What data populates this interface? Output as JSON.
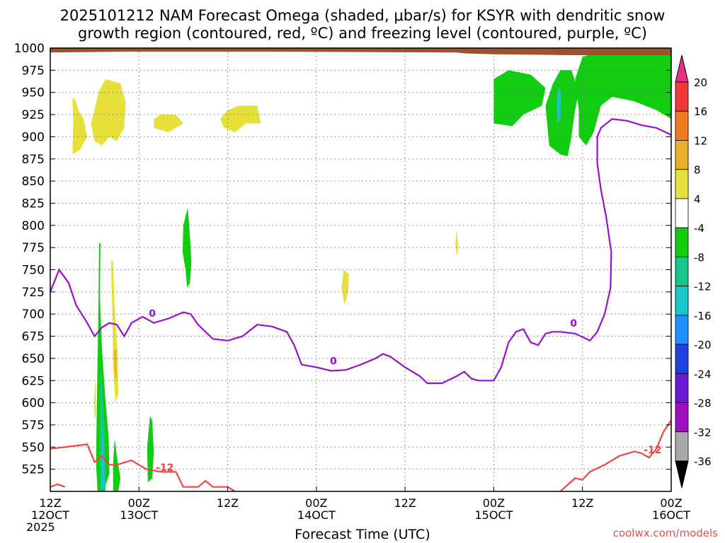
{
  "chart_data": {
    "type": "heatmap",
    "title_line1": "2025101212 NAM Forecast Omega (shaded, μbar/s) for KSYR with dendritic snow",
    "title_line2": "growth region (contoured, red, ºC) and freezing level (contoured, purple, ºC)",
    "xlabel": "Forecast Time (UTC)",
    "credit": "coolwx.com/models",
    "x_hours_range": [
      0,
      84
    ],
    "y_pressure_range": [
      1000,
      500
    ],
    "y_ticks": [
      525,
      550,
      575,
      600,
      625,
      650,
      675,
      700,
      725,
      750,
      775,
      800,
      825,
      850,
      875,
      900,
      925,
      950,
      975,
      1000
    ],
    "x_ticks": [
      {
        "h": 0,
        "top": "12Z",
        "bottom": "12OCT",
        "year": "2025"
      },
      {
        "h": 12,
        "top": "00Z",
        "bottom": "13OCT",
        "year": ""
      },
      {
        "h": 24,
        "top": "12Z",
        "bottom": "",
        "year": ""
      },
      {
        "h": 36,
        "top": "00Z",
        "bottom": "14OCT",
        "year": ""
      },
      {
        "h": 48,
        "top": "12Z",
        "bottom": "",
        "year": ""
      },
      {
        "h": 60,
        "top": "00Z",
        "bottom": "15OCT",
        "year": ""
      },
      {
        "h": 72,
        "top": "12Z",
        "bottom": "",
        "year": ""
      },
      {
        "h": 84,
        "top": "00Z",
        "bottom": "16OCT",
        "year": ""
      }
    ],
    "colorbar": {
      "labels": [
        "20",
        "16",
        "12",
        "8",
        "4",
        "-4",
        "-8",
        "-12",
        "-16",
        "-20",
        "-24",
        "-28",
        "-32",
        "-36"
      ],
      "bands": [
        {
          "color": "#e8308a"
        },
        {
          "color": "#ee3a3a"
        },
        {
          "color": "#f07b23"
        },
        {
          "color": "#e8b02a"
        },
        {
          "color": "#e8e03a"
        },
        {
          "color": "#ffffff"
        },
        {
          "color": "#11cc11"
        },
        {
          "color": "#15c88a"
        },
        {
          "color": "#18c8c8"
        },
        {
          "color": "#1e90ff"
        },
        {
          "color": "#2040e0"
        },
        {
          "color": "#6a1ad0"
        },
        {
          "color": "#a010c0"
        },
        {
          "color": "#a9a9a9"
        },
        {
          "color": "#000000"
        }
      ]
    },
    "contour_labels": {
      "dgz": "-12",
      "freezing": "0"
    },
    "freezing_level": [
      [
        0,
        725
      ],
      [
        1.2,
        750
      ],
      [
        2.5,
        735
      ],
      [
        3.5,
        710
      ],
      [
        5,
        690
      ],
      [
        6,
        675
      ],
      [
        7,
        685
      ],
      [
        8,
        690
      ],
      [
        9,
        688
      ],
      [
        10,
        675
      ],
      [
        11,
        690
      ],
      [
        12.5,
        697
      ],
      [
        14,
        690
      ],
      [
        16,
        695
      ],
      [
        18,
        702
      ],
      [
        19,
        700
      ],
      [
        20,
        688
      ],
      [
        22,
        672
      ],
      [
        24,
        670
      ],
      [
        26,
        675
      ],
      [
        28,
        688
      ],
      [
        30,
        686
      ],
      [
        32,
        680
      ],
      [
        33,
        665
      ],
      [
        34,
        643
      ],
      [
        36,
        640
      ],
      [
        38,
        636
      ],
      [
        40,
        637
      ],
      [
        42,
        643
      ],
      [
        44,
        650
      ],
      [
        45,
        655
      ],
      [
        46,
        652
      ],
      [
        48,
        640
      ],
      [
        50,
        630
      ],
      [
        51,
        622
      ],
      [
        53,
        622
      ],
      [
        55,
        630
      ],
      [
        56,
        635
      ],
      [
        57,
        627
      ],
      [
        58,
        625
      ],
      [
        60,
        625
      ],
      [
        61,
        640
      ],
      [
        62,
        668
      ],
      [
        63,
        680
      ],
      [
        64,
        683
      ],
      [
        65,
        668
      ],
      [
        66,
        665
      ],
      [
        67,
        678
      ],
      [
        68,
        680
      ],
      [
        69,
        680
      ],
      [
        71,
        678
      ],
      [
        73,
        670
      ],
      [
        74,
        680
      ],
      [
        75,
        700
      ],
      [
        75.8,
        730
      ],
      [
        75.9,
        770
      ],
      [
        75.2,
        810
      ],
      [
        74.5,
        840
      ],
      [
        74,
        870
      ],
      [
        74,
        900
      ],
      [
        74.5,
        910
      ],
      [
        76,
        920
      ],
      [
        78,
        918
      ],
      [
        80,
        913
      ],
      [
        82,
        910
      ],
      [
        84,
        902
      ]
    ],
    "dgz_top": [
      [
        0,
        548
      ],
      [
        5,
        553
      ],
      [
        6,
        533
      ],
      [
        7,
        540
      ],
      [
        8,
        530
      ],
      [
        9,
        530
      ],
      [
        11,
        535
      ],
      [
        12,
        530
      ],
      [
        13,
        525
      ],
      [
        15,
        522
      ],
      [
        17,
        522
      ],
      [
        18,
        505
      ],
      [
        20,
        505
      ],
      [
        21,
        512
      ],
      [
        22,
        505
      ],
      [
        24,
        505
      ],
      [
        25,
        500
      ]
    ],
    "dgz_left_top": [
      [
        0,
        505
      ],
      [
        1,
        508
      ],
      [
        2,
        505
      ]
    ],
    "dgz_right": [
      [
        69,
        500
      ],
      [
        71,
        515
      ],
      [
        72,
        513
      ],
      [
        73,
        522
      ],
      [
        75,
        530
      ],
      [
        77,
        540
      ],
      [
        79,
        545
      ],
      [
        80,
        543
      ],
      [
        81,
        538
      ],
      [
        82,
        548
      ],
      [
        83,
        568
      ],
      [
        84,
        580
      ]
    ],
    "omega_regions": [
      {
        "color": "#11cc11",
        "pts": [
          [
            6.4,
            500
          ],
          [
            7.2,
            500
          ],
          [
            8.0,
            520
          ],
          [
            7.9,
            560
          ],
          [
            7.4,
            610
          ],
          [
            7.0,
            660
          ],
          [
            6.7,
            720
          ],
          [
            6.8,
            780
          ],
          [
            6.6,
            780
          ],
          [
            6.5,
            700
          ],
          [
            6.3,
            600
          ],
          [
            6.2,
            530
          ]
        ]
      },
      {
        "color": "#11cc11",
        "pts": [
          [
            8.5,
            500
          ],
          [
            9.2,
            500
          ],
          [
            9.5,
            515
          ],
          [
            9.0,
            540
          ],
          [
            8.7,
            560
          ],
          [
            8.5,
            530
          ]
        ]
      },
      {
        "color": "#11cc11",
        "pts": [
          [
            13.2,
            510
          ],
          [
            13.8,
            515
          ],
          [
            14.0,
            545
          ],
          [
            13.8,
            580
          ],
          [
            13.5,
            585
          ],
          [
            13.1,
            550
          ]
        ]
      },
      {
        "color": "#15c88a",
        "pts": [
          [
            6.8,
            500
          ],
          [
            7.5,
            500
          ],
          [
            7.4,
            560
          ],
          [
            7.0,
            620
          ],
          [
            6.8,
            640
          ],
          [
            6.7,
            560
          ]
        ]
      },
      {
        "color": "#18c8c8",
        "pts": [
          [
            7.0,
            505
          ],
          [
            7.4,
            505
          ],
          [
            7.3,
            540
          ],
          [
            7.0,
            570
          ],
          [
            6.9,
            530
          ]
        ]
      },
      {
        "color": "#11cc11",
        "pts": [
          [
            18.5,
            730
          ],
          [
            18.9,
            735
          ],
          [
            19.1,
            760
          ],
          [
            18.8,
            800
          ],
          [
            18.6,
            820
          ],
          [
            18.0,
            800
          ],
          [
            17.9,
            770
          ],
          [
            18.3,
            750
          ]
        ]
      },
      {
        "color": "#e8e03a",
        "pts": [
          [
            8.8,
            600
          ],
          [
            9.2,
            610
          ],
          [
            9.1,
            660
          ],
          [
            8.7,
            710
          ],
          [
            8.5,
            760
          ],
          [
            8.2,
            760
          ],
          [
            8.4,
            700
          ],
          [
            8.5,
            640
          ]
        ]
      },
      {
        "color": "#e8b02a",
        "pts": [
          [
            8.8,
            625
          ],
          [
            9.0,
            630
          ],
          [
            8.9,
            660
          ],
          [
            8.6,
            660
          ],
          [
            8.7,
            640
          ]
        ]
      },
      {
        "color": "#e8e03a",
        "pts": [
          [
            6.0,
            580
          ],
          [
            6.2,
            590
          ],
          [
            6.1,
            630
          ],
          [
            5.9,
            600
          ]
        ]
      },
      {
        "color": "#e8e03a",
        "pts": [
          [
            39.8,
            710
          ],
          [
            40.3,
            725
          ],
          [
            40.4,
            745
          ],
          [
            39.7,
            750
          ],
          [
            39.4,
            730
          ]
        ]
      },
      {
        "color": "#e8e03a",
        "pts": [
          [
            55.0,
            765
          ],
          [
            55.2,
            775
          ],
          [
            55.0,
            795
          ],
          [
            54.8,
            780
          ]
        ]
      },
      {
        "color": "#e8e03a",
        "pts": [
          [
            3.0,
            880
          ],
          [
            4.0,
            885
          ],
          [
            5.0,
            900
          ],
          [
            4.5,
            920
          ],
          [
            3.8,
            930
          ],
          [
            3.5,
            940
          ],
          [
            3.0,
            945
          ],
          [
            3.1,
            915
          ]
        ]
      },
      {
        "color": "#e8e03a",
        "pts": [
          [
            6.0,
            895
          ],
          [
            7.0,
            890
          ],
          [
            8.0,
            900
          ],
          [
            9.0,
            895
          ],
          [
            10.0,
            910
          ],
          [
            10.2,
            940
          ],
          [
            9.5,
            960
          ],
          [
            7.5,
            965
          ],
          [
            6.5,
            950
          ],
          [
            6.0,
            930
          ],
          [
            5.5,
            915
          ]
        ]
      },
      {
        "color": "#e8e03a",
        "pts": [
          [
            14.0,
            910
          ],
          [
            16.0,
            905
          ],
          [
            18.0,
            915
          ],
          [
            17.0,
            925
          ],
          [
            15.0,
            925
          ],
          [
            14.0,
            920
          ]
        ]
      },
      {
        "color": "#e8e03a",
        "pts": [
          [
            23.5,
            910
          ],
          [
            25.0,
            905
          ],
          [
            26.5,
            915
          ],
          [
            28.5,
            915
          ],
          [
            28.0,
            935
          ],
          [
            25.5,
            935
          ],
          [
            24.0,
            930
          ],
          [
            23.0,
            920
          ]
        ]
      },
      {
        "color": "#11cc11",
        "pts": [
          [
            60.0,
            915
          ],
          [
            62.5,
            912
          ],
          [
            64.0,
            925
          ],
          [
            66.5,
            935
          ],
          [
            67.0,
            955
          ],
          [
            65.0,
            970
          ],
          [
            62.0,
            975
          ],
          [
            60.0,
            965
          ]
        ]
      },
      {
        "color": "#11cc11",
        "pts": [
          [
            67.5,
            890
          ],
          [
            69.0,
            880
          ],
          [
            70.0,
            878
          ],
          [
            70.5,
            900
          ],
          [
            71.0,
            930
          ],
          [
            71.5,
            950
          ],
          [
            70.5,
            975
          ],
          [
            69.0,
            975
          ],
          [
            68.0,
            960
          ],
          [
            67.0,
            935
          ]
        ]
      },
      {
        "color": "#11cc11",
        "pts": [
          [
            71.5,
            900
          ],
          [
            72.5,
            890
          ],
          [
            73.5,
            905
          ],
          [
            74.5,
            935
          ],
          [
            76.0,
            945
          ],
          [
            79.0,
            940
          ],
          [
            82.0,
            930
          ],
          [
            84.0,
            920
          ],
          [
            84.0,
            995
          ],
          [
            80.0,
            998
          ],
          [
            74.0,
            996
          ],
          [
            72.0,
            990
          ],
          [
            71.0,
            965
          ],
          [
            71.5,
            930
          ]
        ]
      },
      {
        "color": "#18c8c8",
        "pts": [
          [
            68.6,
            915
          ],
          [
            69.0,
            920
          ],
          [
            69.1,
            950
          ],
          [
            68.7,
            955
          ],
          [
            68.5,
            935
          ]
        ]
      }
    ],
    "terrain": {
      "color": "#a0522d",
      "pts": [
        [
          0,
          995
        ],
        [
          10,
          996
        ],
        [
          30,
          996
        ],
        [
          55,
          995
        ],
        [
          56,
          994
        ],
        [
          60,
          993
        ],
        [
          70,
          992
        ],
        [
          84,
          992
        ],
        [
          84,
          1000
        ],
        [
          0,
          1000
        ]
      ]
    }
  }
}
